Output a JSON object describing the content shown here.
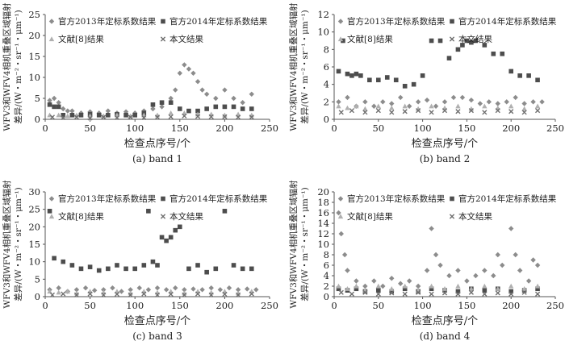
{
  "chart_data": [
    {
      "type": "scatter",
      "caption": "(a) band 1",
      "xlabel": "检查点序号/个",
      "ylabel_line1": "WFV3和WFV4相机重叠区域辐射",
      "ylabel_line2": "差异/(W・m⁻²・sr⁻¹・μm⁻¹)",
      "xlim": [
        0,
        250
      ],
      "ylim": [
        0,
        25
      ],
      "xticks": [
        0,
        50,
        100,
        150,
        200,
        250
      ],
      "yticks": [
        0,
        5,
        10,
        15,
        20,
        25
      ],
      "series": [
        {
          "name": "官方2013年定标系数结果",
          "marker": "diamond",
          "color": "#8c8c8c",
          "x": [
            5,
            10,
            15,
            20,
            25,
            30,
            40,
            50,
            60,
            70,
            80,
            90,
            100,
            110,
            120,
            130,
            140,
            145,
            150,
            155,
            160,
            165,
            170,
            175,
            180,
            190,
            200,
            210,
            220,
            230
          ],
          "y": [
            4.5,
            5,
            4,
            2.5,
            2,
            2,
            1.5,
            1.8,
            1.5,
            2,
            1.5,
            1.8,
            1.5,
            2,
            2.5,
            3,
            5,
            7,
            11,
            13,
            12,
            11,
            9,
            7,
            6,
            5,
            7,
            5,
            4,
            6
          ]
        },
        {
          "name": "官方2014年定标系数结果",
          "marker": "square",
          "color": "#4d4d4d",
          "x": [
            5,
            10,
            15,
            20,
            30,
            40,
            50,
            60,
            70,
            80,
            90,
            100,
            110,
            120,
            130,
            140,
            150,
            160,
            170,
            180,
            190,
            200,
            210,
            220,
            230
          ],
          "y": [
            3.5,
            3,
            3,
            1,
            1,
            1,
            1.2,
            1,
            1,
            1.2,
            1,
            1,
            1.5,
            3.5,
            4,
            4,
            2.5,
            2,
            2,
            2.5,
            3,
            3,
            3,
            2.5,
            2.5
          ]
        },
        {
          "name": "文献[8]结果",
          "marker": "triangle",
          "color": "#b0b0b0",
          "x": [
            5,
            15,
            25,
            35,
            50,
            65,
            80,
            95,
            110,
            125,
            140,
            155,
            170,
            185,
            200,
            215,
            230
          ],
          "y": [
            1,
            1,
            0.8,
            1,
            0.8,
            0.8,
            1,
            0.8,
            1,
            1,
            1.5,
            1.5,
            1.2,
            1.2,
            1,
            1.2,
            1
          ]
        },
        {
          "name": "本文结果",
          "marker": "x",
          "color": "#6e6e6e",
          "x": [
            8,
            20,
            35,
            50,
            65,
            80,
            95,
            110,
            125,
            140,
            155,
            170,
            185,
            200,
            215,
            230
          ],
          "y": [
            0.5,
            0.4,
            0.5,
            0.3,
            0.5,
            0.4,
            0.5,
            0.4,
            0.5,
            0.6,
            0.8,
            0.7,
            0.6,
            0.6,
            0.5,
            0.5
          ]
        }
      ]
    },
    {
      "type": "scatter",
      "caption": "(b) band 2",
      "xlabel": "检查点序号/个",
      "ylabel_line1": "WFV3和WFV4相机重叠区域辐射",
      "ylabel_line2": "差异/(W・m⁻²・sr⁻¹・μm⁻¹)",
      "xlim": [
        0,
        250
      ],
      "ylim": [
        0,
        12
      ],
      "xticks": [
        0,
        50,
        100,
        150,
        200,
        250
      ],
      "yticks": [
        0,
        2,
        4,
        6,
        8,
        10,
        12
      ],
      "series": [
        {
          "name": "官方2013年定标系数结果",
          "marker": "diamond",
          "color": "#8c8c8c",
          "x": [
            5,
            15,
            25,
            35,
            45,
            55,
            65,
            75,
            85,
            95,
            105,
            115,
            125,
            135,
            145,
            155,
            165,
            175,
            185,
            195,
            205,
            215,
            225,
            235
          ],
          "y": [
            2,
            2.5,
            1.5,
            2,
            1.5,
            2,
            1.8,
            2.5,
            1.5,
            2,
            2.2,
            1.5,
            2,
            2.5,
            2.5,
            2.2,
            1.8,
            2,
            1.8,
            2,
            2.5,
            1.8,
            2,
            2
          ]
        },
        {
          "name": "官方2014年定标系数结果",
          "marker": "square",
          "color": "#4d4d4d",
          "x": [
            5,
            10,
            15,
            20,
            25,
            30,
            40,
            50,
            60,
            70,
            80,
            90,
            100,
            110,
            120,
            130,
            140,
            145,
            150,
            155,
            160,
            170,
            180,
            190,
            200,
            210,
            220,
            230
          ],
          "y": [
            5.5,
            9,
            5.2,
            5,
            5.2,
            5,
            4.5,
            4.5,
            4.8,
            4.5,
            3.8,
            4,
            5,
            9,
            9,
            7,
            8,
            8.5,
            9,
            8.8,
            9,
            8.5,
            7.5,
            7.5,
            5.5,
            5,
            5,
            4.5
          ]
        },
        {
          "name": "文献[8]结果",
          "marker": "triangle",
          "color": "#b0b0b0",
          "x": [
            5,
            15,
            25,
            35,
            50,
            65,
            80,
            95,
            110,
            125,
            140,
            155,
            170,
            185,
            200,
            215,
            230
          ],
          "y": [
            1.5,
            1.3,
            1.5,
            1.2,
            1.5,
            1.3,
            1.5,
            1.2,
            1.5,
            1.3,
            1.5,
            1.2,
            1.5,
            1.3,
            1.5,
            1.2,
            1.5
          ]
        },
        {
          "name": "本文结果",
          "marker": "x",
          "color": "#6e6e6e",
          "x": [
            8,
            20,
            35,
            50,
            65,
            80,
            95,
            110,
            125,
            140,
            155,
            170,
            185,
            200,
            215,
            230
          ],
          "y": [
            0.8,
            1,
            0.8,
            1,
            0.8,
            0.9,
            1,
            0.8,
            1,
            0.9,
            1,
            0.8,
            1,
            0.9,
            0.8,
            1
          ]
        }
      ]
    },
    {
      "type": "scatter",
      "caption": "(c) band 3",
      "xlabel": "检查点序号/个",
      "ylabel_line1": "WFV3和WFV4相机重叠区域辐射",
      "ylabel_line2": "差异/(W・m⁻²・sr⁻¹・μm⁻¹)",
      "xlim": [
        0,
        250
      ],
      "ylim": [
        0,
        30
      ],
      "xticks": [
        0,
        50,
        100,
        150,
        200,
        250
      ],
      "yticks": [
        0,
        5,
        10,
        15,
        20,
        25,
        30
      ],
      "series": [
        {
          "name": "官方2013年定标系数结果",
          "marker": "diamond",
          "color": "#8c8c8c",
          "x": [
            5,
            15,
            25,
            35,
            45,
            55,
            65,
            75,
            85,
            95,
            105,
            115,
            125,
            135,
            145,
            155,
            165,
            175,
            185,
            195,
            205,
            215,
            225,
            235
          ],
          "y": [
            2,
            2.5,
            1.5,
            2,
            2.5,
            1.8,
            2,
            2.5,
            1.5,
            2,
            2.5,
            2,
            2.5,
            2,
            2.5,
            2,
            2.2,
            2,
            2.5,
            2,
            2.5,
            2,
            2.2,
            2
          ]
        },
        {
          "name": "官方2014年定标系数结果",
          "marker": "square",
          "color": "#4d4d4d",
          "x": [
            5,
            10,
            20,
            30,
            40,
            50,
            60,
            70,
            80,
            90,
            100,
            110,
            115,
            120,
            125,
            130,
            135,
            140,
            145,
            150,
            160,
            170,
            180,
            190,
            200,
            210,
            220,
            230
          ],
          "y": [
            24.5,
            11,
            10,
            9,
            8,
            8.5,
            7.5,
            8,
            9,
            8,
            8,
            9,
            24.5,
            10,
            9,
            17,
            16,
            17,
            19,
            20,
            8,
            9,
            7,
            8,
            24.5,
            9,
            8,
            8
          ]
        },
        {
          "name": "文献[8]结果",
          "marker": "triangle",
          "color": "#b0b0b0",
          "x": [
            5,
            15,
            25,
            35,
            50,
            65,
            80,
            95,
            110,
            125,
            140,
            155,
            170,
            185,
            200,
            215,
            230
          ],
          "y": [
            1.5,
            1.2,
            1.5,
            1,
            1.5,
            1.2,
            1.5,
            1,
            1.5,
            1.2,
            1.5,
            1,
            1.5,
            1.2,
            1.5,
            1,
            1.5
          ]
        },
        {
          "name": "本文结果",
          "marker": "x",
          "color": "#6e6e6e",
          "x": [
            8,
            20,
            35,
            50,
            65,
            80,
            95,
            110,
            125,
            140,
            155,
            170,
            185,
            200,
            215,
            230
          ],
          "y": [
            0.5,
            0.8,
            0.5,
            0.8,
            0.5,
            0.7,
            0.5,
            0.8,
            0.5,
            0.7,
            0.5,
            0.8,
            0.5,
            0.7,
            0.5,
            0.8
          ]
        }
      ]
    },
    {
      "type": "scatter",
      "caption": "(d) band 4",
      "xlabel": "检查点序号/个",
      "ylabel_line1": "WFV3和WFV4相机重叠区域辐射",
      "ylabel_line2": "差异/(W・m⁻²・sr⁻¹・μm⁻¹)",
      "xlim": [
        0,
        250
      ],
      "ylim": [
        0,
        20
      ],
      "xticks": [
        0,
        50,
        100,
        150,
        200,
        250
      ],
      "yticks": [
        0,
        2,
        4,
        6,
        8,
        10,
        12,
        14,
        16,
        18,
        20
      ],
      "series": [
        {
          "name": "官方2013年定标系数结果",
          "marker": "diamond",
          "color": "#8c8c8c",
          "x": [
            5,
            8,
            12,
            15,
            25,
            35,
            45,
            55,
            65,
            75,
            85,
            95,
            105,
            110,
            115,
            120,
            130,
            140,
            150,
            160,
            170,
            180,
            185,
            190,
            200,
            205,
            210,
            220,
            225,
            230
          ],
          "y": [
            16,
            12,
            8,
            5,
            3,
            2,
            3,
            2,
            3.5,
            2.5,
            3,
            2,
            5,
            13,
            8,
            6,
            4,
            5,
            3,
            4,
            5,
            4,
            8,
            6,
            13,
            8,
            5,
            3,
            7,
            6
          ]
        },
        {
          "name": "官方2014年定标系数结果",
          "marker": "square",
          "color": "#4d4d4d",
          "x": [
            5,
            15,
            25,
            35,
            50,
            65,
            80,
            95,
            110,
            125,
            140,
            155,
            170,
            185,
            200,
            215,
            230
          ],
          "y": [
            1.5,
            1.2,
            1.5,
            1,
            1.2,
            1,
            1.5,
            1,
            1.5,
            1.2,
            1,
            1.5,
            1.2,
            1.5,
            1,
            1.2,
            1.5
          ]
        },
        {
          "name": "文献[8]结果",
          "marker": "triangle",
          "color": "#b0b0b0",
          "x": [
            5,
            15,
            25,
            35,
            50,
            65,
            80,
            95,
            110,
            125,
            140,
            155,
            170,
            185,
            200,
            215,
            230
          ],
          "y": [
            2,
            1.5,
            2,
            1.2,
            2,
            1.5,
            2,
            1.2,
            2,
            1.5,
            2,
            1.5,
            2,
            1.5,
            2,
            1.5,
            2
          ]
        },
        {
          "name": "本文结果",
          "marker": "x",
          "color": "#6e6e6e",
          "x": [
            8,
            20,
            35,
            50,
            65,
            80,
            95,
            110,
            125,
            140,
            155,
            170,
            185,
            200,
            215,
            230
          ],
          "y": [
            0.8,
            0.5,
            0.8,
            0.5,
            0.7,
            0.5,
            0.8,
            0.5,
            0.7,
            0.5,
            0.8,
            0.5,
            0.7,
            0.5,
            0.8,
            0.5
          ]
        }
      ]
    }
  ]
}
